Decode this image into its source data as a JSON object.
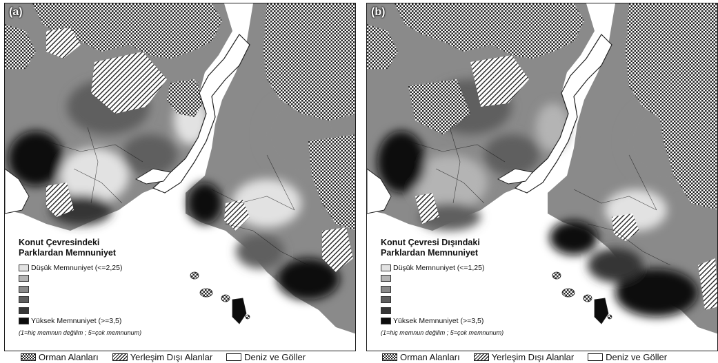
{
  "colors": {
    "class_1": "#e2e2e2",
    "class_2": "#b4b4b4",
    "class_3": "#8a8a8a",
    "class_4": "#5e5e5e",
    "class_5": "#363636",
    "class_6": "#0c0c0c",
    "water": "#ffffff",
    "forest_pattern": "#222222"
  },
  "panels": [
    {
      "label": "(a)",
      "legend_title_line1": "Konut Çevresindeki",
      "legend_title_line2": "Parklardan Memnuniyet",
      "low_label": "Düşük Memnuniyet (<=2,25)",
      "high_label": "Yüksek Memnuniyet (>=3,5)",
      "note": "(1=hiç memnun değilim ; 5=çok memnunum)"
    },
    {
      "label": "(b)",
      "legend_title_line1": "Konut Çevresi Dışındaki",
      "legend_title_line2": "Parklardan Memnuniyet",
      "low_label": "Düşük Memnuniyet (<=1,25)",
      "high_label": "Yüksek Memnuniyet (>=3,5)",
      "note": "(1=hiç memnun değilim ; 5=çok memnunum)"
    }
  ],
  "bottom_legend": {
    "forest": "Orman Alanları",
    "nonresidential": "Yerleşim Dışı Alanlar",
    "water": "Deniz ve Göller"
  }
}
